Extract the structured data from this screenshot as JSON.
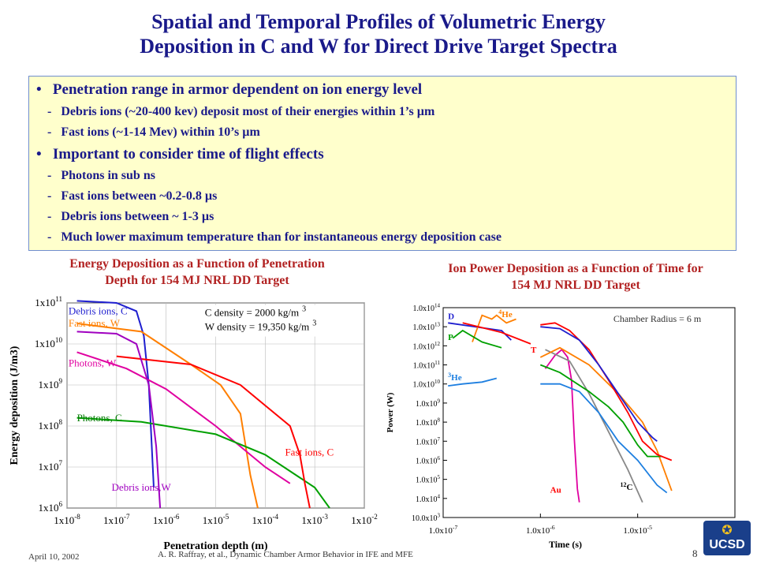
{
  "title": {
    "line1": "Spatial and Temporal Profiles of Volumetric Energy",
    "line2": "Deposition in C and W for Direct Drive Target Spectra"
  },
  "bullets": [
    {
      "text": "Penetration range in armor dependent on ion energy level",
      "subs": [
        "Debris ions (~20-400 kev) deposit most of their energies within 1’s µm",
        "Fast ions (~1-14 Mev) within 10’s µm"
      ]
    },
    {
      "text": "Important to consider time of flight effects",
      "subs": [
        "Photons in sub ns",
        "Fast ions between ~0.2-0.8 µs",
        "Debris ions between ~ 1-3 µs",
        "Much lower maximum temperature than for instantaneous energy deposition case"
      ]
    }
  ],
  "captions": {
    "left": [
      "Energy Deposition as a Function of Penetration",
      "Depth for 154 MJ NRL DD Target"
    ],
    "right": [
      "Ion Power Deposition as a Function of Time for",
      "154 MJ NRL DD Target"
    ]
  },
  "footer": {
    "date": "April 10, 2002",
    "author": "A. R. Raffray, et al., Dynamic Chamber Armor Behavior in IFE and MFE",
    "page": "8",
    "logo": "UCSD"
  },
  "chart_data": [
    {
      "type": "line",
      "xlabel": "Penetration depth (m)",
      "ylabel": "Energy deposition (J/m3)",
      "xscale": "log",
      "yscale": "log",
      "xlim": [
        1e-08,
        0.01
      ],
      "ylim": [
        1000000.0,
        100000000000.0
      ],
      "xticks": [
        -8,
        -7,
        -6,
        -5,
        -4,
        -3,
        -2
      ],
      "yticks": [
        6,
        7,
        8,
        9,
        10,
        11
      ],
      "notes": [
        "C density = 2000 kg/m 3",
        "W density = 19,350 kg/m 3"
      ],
      "series": [
        {
          "name": "Debris ions, C",
          "color": "#1f1fcf",
          "labelColor": "#1f1fcf",
          "label": [
            -7.97,
            10.72
          ],
          "points": [
            [
              -7.8,
              11.05
            ],
            [
              -7,
              11.0
            ],
            [
              -6.6,
              10.8
            ],
            [
              -6.45,
              10.2
            ],
            [
              -6.35,
              9.0
            ],
            [
              -6.25,
              6.5
            ]
          ]
        },
        {
          "name": "Fast ions, W",
          "color": "#ff7f00",
          "labelColor": "#ff7f00",
          "label": [
            -7.97,
            10.42
          ],
          "points": [
            [
              -7.8,
              10.5
            ],
            [
              -6.5,
              10.3
            ],
            [
              -5.5,
              9.5
            ],
            [
              -4.9,
              9.0
            ],
            [
              -4.5,
              8.3
            ],
            [
              -4.3,
              6.8
            ],
            [
              -4.15,
              6.0
            ]
          ]
        },
        {
          "name": "Photons, W",
          "color": "#e000a0",
          "labelColor": "#e000a0",
          "label": [
            -7.97,
            9.45
          ],
          "points": [
            [
              -7.8,
              9.8
            ],
            [
              -6.8,
              9.4
            ],
            [
              -6.0,
              8.9
            ],
            [
              -5.0,
              8.0
            ],
            [
              -4.0,
              7.0
            ],
            [
              -3.5,
              6.6
            ]
          ]
        },
        {
          "name": "Photons, C",
          "color": "#00a000",
          "labelColor": "#007a00",
          "label": [
            -7.8,
            8.12
          ],
          "points": [
            [
              -7.8,
              8.2
            ],
            [
              -6.5,
              8.1
            ],
            [
              -5.0,
              7.8
            ],
            [
              -4.0,
              7.3
            ],
            [
              -3.0,
              6.5
            ],
            [
              -2.7,
              6.0
            ]
          ]
        },
        {
          "name": "Fast ions, C",
          "color": "#ff0000",
          "labelColor": "#ff0000",
          "label": [
            -3.6,
            7.28
          ],
          "points": [
            [
              -7,
              9.7
            ],
            [
              -5.5,
              9.5
            ],
            [
              -4.5,
              9.0
            ],
            [
              -4.0,
              8.5
            ],
            [
              -3.5,
              8.0
            ],
            [
              -3.3,
              7.3
            ],
            [
              -3.2,
              6.6
            ],
            [
              -3.1,
              6.0
            ]
          ]
        },
        {
          "name": "Debris ions,W",
          "color": "#a000c0",
          "labelColor": "#a000c0",
          "label": [
            -7.1,
            6.42
          ],
          "points": [
            [
              -7.8,
              10.3
            ],
            [
              -7.0,
              10.25
            ],
            [
              -6.6,
              10.0
            ],
            [
              -6.35,
              9.0
            ],
            [
              -6.2,
              7.5
            ],
            [
              -6.12,
              6.0
            ]
          ]
        }
      ]
    },
    {
      "type": "line",
      "xlabel": "Time (s)",
      "ylabel": "Power (W)",
      "xscale": "log",
      "yscale": "log",
      "xlim": [
        1e-07,
        0.0001
      ],
      "ylim": [
        1000.0,
        100000000000000.0
      ],
      "xticks": [
        -7,
        -6,
        -5,
        -4
      ],
      "yticks": [
        3,
        4,
        5,
        6,
        7,
        8,
        9,
        10,
        11,
        12,
        13,
        14
      ],
      "notes": [
        "Chamber Radius = 6 m"
      ],
      "series": [
        {
          "name": "D",
          "color": "#1f1fcf",
          "labelColor": "#1f1fcf",
          "label": [
            -6.95,
            13.4
          ],
          "points": [
            [
              -6.95,
              13.2
            ],
            [
              -6.4,
              12.8
            ],
            [
              -6.3,
              12.3
            ]
          ]
        },
        {
          "name": "4He",
          "color": "#ff7f00",
          "labelColor": "#ff7f00",
          "label": [
            -6.43,
            13.5
          ],
          "points": [
            [
              -6.7,
              12.2
            ],
            [
              -6.6,
              13.6
            ],
            [
              -6.5,
              13.4
            ],
            [
              -6.45,
              13.6
            ],
            [
              -6.35,
              13.2
            ],
            [
              -6.25,
              13.4
            ]
          ]
        },
        {
          "name": "P",
          "color": "#00a000",
          "labelColor": "#00a000",
          "label": [
            -6.95,
            12.3
          ],
          "points": [
            [
              -6.9,
              12.4
            ],
            [
              -6.8,
              12.8
            ],
            [
              -6.6,
              12.2
            ],
            [
              -6.4,
              11.9
            ]
          ]
        },
        {
          "name": "T",
          "color": "#ff0000",
          "labelColor": "#ff0000",
          "label": [
            -6.1,
            11.65
          ],
          "points": [
            [
              -6.8,
              13.2
            ],
            [
              -6.4,
              12.7
            ],
            [
              -6.1,
              12.1
            ]
          ]
        },
        {
          "name": "3He",
          "color": "#1e7fe0",
          "labelColor": "#1e7fe0",
          "label": [
            -6.95,
            10.2
          ],
          "points": [
            [
              -6.95,
              9.9
            ],
            [
              -6.8,
              10.0
            ],
            [
              -6.6,
              10.1
            ],
            [
              -6.45,
              10.3
            ]
          ]
        },
        {
          "name": "Au",
          "color": "#e000a0",
          "labelColor": "#ff0000",
          "label": [
            -5.9,
            4.3
          ],
          "points": [
            [
              -5.95,
              10.8
            ],
            [
              -5.85,
              11.5
            ],
            [
              -5.78,
              11.8
            ],
            [
              -5.72,
              11.4
            ],
            [
              -5.68,
              10.2
            ],
            [
              -5.65,
              7.0
            ],
            [
              -5.62,
              4.5
            ],
            [
              -5.6,
              3.8
            ]
          ]
        },
        {
          "name": "12C",
          "color": "#888888",
          "labelColor": "#000000",
          "label": [
            -5.18,
            4.45
          ],
          "points": [
            [
              -5.95,
              11.8
            ],
            [
              -5.7,
              11.2
            ],
            [
              -5.5,
              9.5
            ],
            [
              -5.3,
              7.5
            ],
            [
              -5.1,
              5.5
            ],
            [
              -4.95,
              3.8
            ]
          ]
        },
        {
          "name": "Orange",
          "color": "#ff7f00",
          "points": [
            [
              -6.0,
              11.4
            ],
            [
              -5.8,
              11.9
            ],
            [
              -5.5,
              11.0
            ],
            [
              -5.2,
              9.5
            ],
            [
              -4.95,
              8.0
            ],
            [
              -4.8,
              6.5
            ],
            [
              -4.65,
              4.4
            ]
          ]
        },
        {
          "name": "Green",
          "color": "#00a000",
          "points": [
            [
              -6.0,
              11.0
            ],
            [
              -5.8,
              10.6
            ],
            [
              -5.5,
              9.6
            ],
            [
              -5.3,
              8.8
            ],
            [
              -5.15,
              8.0
            ],
            [
              -5.0,
              6.8
            ],
            [
              -4.9,
              6.2
            ],
            [
              -4.75,
              6.2
            ]
          ]
        },
        {
          "name": "Red",
          "color": "#ff0000",
          "points": [
            [
              -6.0,
              13.1
            ],
            [
              -5.85,
              13.2
            ],
            [
              -5.7,
              12.8
            ],
            [
              -5.5,
              11.8
            ],
            [
              -5.3,
              10.2
            ],
            [
              -5.1,
              8.5
            ],
            [
              -4.95,
              7.0
            ],
            [
              -4.8,
              6.3
            ],
            [
              -4.65,
              6.0
            ]
          ]
        },
        {
          "name": "Blue",
          "color": "#1f1fcf",
          "points": [
            [
              -6.0,
              13.0
            ],
            [
              -5.8,
              12.9
            ],
            [
              -5.6,
              12.3
            ],
            [
              -5.4,
              11.0
            ],
            [
              -5.2,
              9.5
            ],
            [
              -5.0,
              8.0
            ],
            [
              -4.85,
              7.2
            ],
            [
              -4.8,
              7.0
            ]
          ]
        },
        {
          "name": "LightBlue",
          "color": "#1e7fe0",
          "points": [
            [
              -6.0,
              10.0
            ],
            [
              -5.8,
              10.0
            ],
            [
              -5.6,
              9.6
            ],
            [
              -5.4,
              8.5
            ],
            [
              -5.2,
              7.0
            ],
            [
              -5.0,
              6.0
            ],
            [
              -4.8,
              4.7
            ],
            [
              -4.7,
              4.3
            ]
          ]
        }
      ]
    }
  ]
}
